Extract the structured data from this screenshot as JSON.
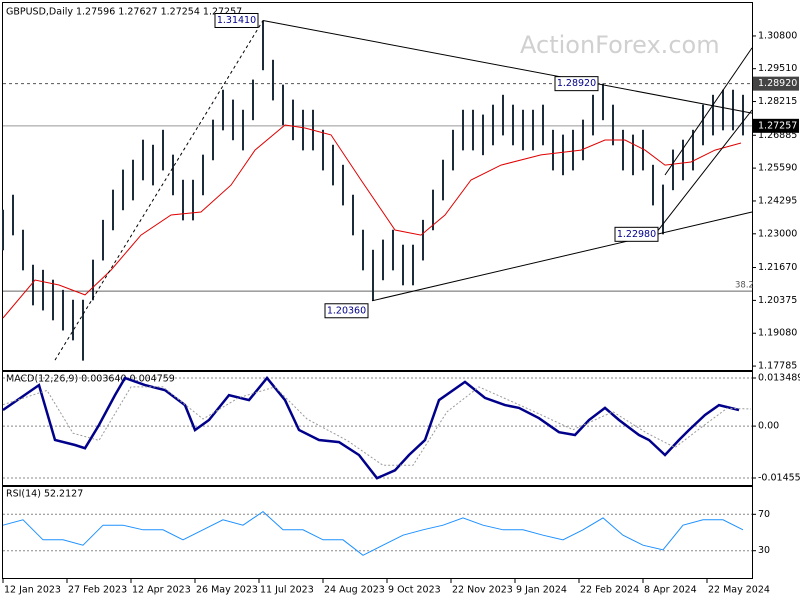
{
  "chart_data": [
    {
      "type": "ohlc",
      "title": "GBPUSD,Daily  1.27596 1.27627 1.27254 1.27257",
      "watermark": "ActionForex.com",
      "color": "#1c2b3a",
      "xlim": [
        0,
        374
      ],
      "ylim": [
        1.1767,
        1.3206
      ],
      "yticks": [
        {
          "value": 1.308,
          "label": "1.30800"
        },
        {
          "value": 1.2951,
          "label": "1.29510"
        },
        1.28215,
        1.26885,
        {
          "value": 1.2559,
          "label": "1.25590"
        },
        1.24295,
        {
          "value": 1.23,
          "label": "1.23000"
        },
        {
          "value": 1.2167,
          "label": "1.21670"
        },
        1.20375,
        {
          "value": 1.1908,
          "label": "1.19080"
        },
        1.17785
      ],
      "x": [
        0,
        5,
        10,
        15,
        20,
        25,
        30,
        35,
        40,
        45,
        50,
        55,
        60,
        65,
        70,
        75,
        80,
        85,
        90,
        95,
        100,
        105,
        110,
        115,
        120,
        125,
        130,
        135,
        140,
        145,
        150,
        155,
        160,
        165,
        170,
        175,
        180,
        185,
        190,
        195,
        200,
        205,
        210,
        215,
        220,
        225,
        230,
        235,
        240,
        245,
        250,
        255,
        260,
        265,
        270,
        275,
        280,
        285,
        290,
        295,
        300,
        305,
        310,
        315,
        320,
        325,
        330,
        335,
        340,
        345,
        350,
        355,
        360,
        365,
        370
      ],
      "high": [
        1.2395,
        1.2454,
        1.2316,
        1.2178,
        1.2158,
        1.2119,
        1.2079,
        1.204,
        1.204,
        1.2198,
        1.2355,
        1.2474,
        1.2553,
        1.2592,
        1.2671,
        1.2651,
        1.271,
        1.2612,
        1.2513,
        1.2513,
        1.2612,
        1.275,
        1.2868,
        1.2829,
        1.2789,
        1.2908,
        1.3141,
        1.2986,
        1.2888,
        1.2829,
        1.2789,
        1.2789,
        1.271,
        1.2651,
        1.2572,
        1.2454,
        1.2316,
        1.2237,
        1.2277,
        1.2316,
        1.2257,
        1.2257,
        1.2355,
        1.2474,
        1.2592,
        1.271,
        1.2789,
        1.2789,
        1.277,
        1.2809,
        1.2848,
        1.2809,
        1.2789,
        1.2789,
        1.2809,
        1.271,
        1.2691,
        1.271,
        1.275,
        1.2848,
        1.2892,
        1.2809,
        1.271,
        1.2691,
        1.271,
        1.2572,
        1.2494,
        1.2632,
        1.2671,
        1.271,
        1.2809,
        1.2848,
        1.2868,
        1.2868,
        1.2848
      ],
      "low": [
        1.2235,
        1.2294,
        1.2156,
        1.2018,
        1.1998,
        1.1959,
        1.1919,
        1.188,
        1.18,
        1.2038,
        1.2195,
        1.2314,
        1.2393,
        1.2432,
        1.2511,
        1.2491,
        1.255,
        1.2452,
        1.2353,
        1.2353,
        1.2452,
        1.259,
        1.2708,
        1.2669,
        1.2629,
        1.2748,
        1.2945,
        1.2826,
        1.2728,
        1.2669,
        1.2629,
        1.2629,
        1.255,
        1.2491,
        1.2412,
        1.2294,
        1.2156,
        1.2036,
        1.2117,
        1.2156,
        1.2097,
        1.2097,
        1.2195,
        1.2314,
        1.2432,
        1.255,
        1.2629,
        1.2629,
        1.261,
        1.2649,
        1.2688,
        1.2649,
        1.2629,
        1.2629,
        1.2649,
        1.255,
        1.2531,
        1.255,
        1.259,
        1.2688,
        1.2748,
        1.2649,
        1.255,
        1.2531,
        1.255,
        1.2412,
        1.2298,
        1.2472,
        1.2511,
        1.255,
        1.2649,
        1.2688,
        1.2708,
        1.2708,
        1.2688
      ],
      "ma": {
        "color": "#e00000",
        "x": [
          0,
          16,
          28,
          41,
          54,
          69,
          84,
          99,
          114,
          126,
          141,
          151,
          164,
          179,
          196,
          209,
          221,
          234,
          249,
          269,
          289,
          301,
          311,
          321,
          331,
          344,
          356,
          369
        ],
        "values": [
          1.1968,
          1.2118,
          1.2098,
          1.2059,
          1.2157,
          1.2295,
          1.2374,
          1.2386,
          1.2492,
          1.263,
          1.2729,
          1.2717,
          1.269,
          1.2512,
          1.2315,
          1.2295,
          1.2374,
          1.2512,
          1.2571,
          1.2611,
          1.263,
          1.267,
          1.267,
          1.263,
          1.2571,
          1.2583,
          1.263,
          1.2658
        ]
      },
      "trendlines": [
        {
          "x": [
            130,
            374.5
          ],
          "values": [
            1.3141,
            1.2776
          ],
          "dashed": false
        },
        {
          "x": [
            184.5,
            374.5
          ],
          "values": [
            1.2036,
            1.2386
          ],
          "dashed": false
        },
        {
          "x": [
            26,
            130
          ],
          "values": [
            1.1802,
            1.3141
          ],
          "dashed": true
        },
        {
          "x": [
            326,
            374.5
          ],
          "values": [
            1.2298,
            1.2788
          ],
          "dashed": false
        },
        {
          "x": [
            331,
            374.5
          ],
          "values": [
            1.2532,
            1.3033
          ],
          "dashed": false
        }
      ],
      "annotations": [
        {
          "x": 130,
          "value": {
            "value": 1.3141,
            "label": "1.31410"
          }
        },
        {
          "x": 300,
          "value": {
            "value": 1.2892,
            "label": "1.28920"
          }
        },
        {
          "x": 185,
          "value": {
            "value": 1.2036,
            "label": "1.20360"
          }
        },
        {
          "x": 330,
          "value": {
            "value": 1.2298,
            "label": "1.22980"
          }
        }
      ],
      "price_levels": [
        {
          "value": 1.2892,
          "label": "1.28920"
        },
        1.27257
      ],
      "level_dashed": [
        true,
        false
      ],
      "level_colors": [
        "#444444",
        "#000000"
      ],
      "fib_level": 1.2074,
      "fib_label": 38.2,
      "grid": false
    },
    {
      "type": "line",
      "title": "MACD(12,26,9) 0.003640 0.004759",
      "xlim": [
        0,
        374
      ],
      "ylim": [
        -0.01652,
        0.01517
      ],
      "yticks": [
        0.013489,
        {
          "value": 0,
          "label": "0.00"
        },
        -0.014554
      ],
      "grid": true,
      "series": [
        {
          "color": "#00008b",
          "width": 2.5,
          "dashed": false,
          "x": [
            0,
            18,
            26,
            36,
            41,
            48,
            56,
            61,
            71,
            81,
            91,
            96,
            103,
            113,
            123,
            132,
            141,
            148,
            158,
            168,
            178,
            187,
            196,
            203,
            211,
            218,
            231,
            241,
            251,
            258,
            268,
            278,
            286,
            293,
            301,
            308,
            318,
            323,
            331,
            338,
            343,
            351,
            358,
            368
          ],
          "values": [
            0.0045,
            0.0115,
            -0.0039,
            -0.0053,
            -0.0062,
            0.0003,
            0.0087,
            0.0135,
            0.0115,
            0.0101,
            0.0059,
            -0.0011,
            0.0017,
            0.0087,
            0.0073,
            0.0135,
            0.0073,
            -0.0011,
            -0.0039,
            -0.0045,
            -0.0081,
            -0.0146,
            -0.0124,
            -0.0081,
            -0.0039,
            0.0073,
            0.0124,
            0.0079,
            0.0059,
            0.0051,
            0.0022,
            -0.0017,
            -0.0025,
            0.0017,
            0.0051,
            0.0017,
            -0.0025,
            -0.0039,
            -0.0081,
            -0.0039,
            -0.0011,
            0.0031,
            0.0059,
            0.0045
          ]
        },
        {
          "color": "#9a9a9a",
          "width": 1,
          "dashed": true,
          "x": [
            0,
            22,
            35,
            48,
            64,
            80,
            100,
            118,
            136,
            152,
            172,
            190,
            205,
            222,
            238,
            262,
            285,
            305,
            322,
            336,
            350,
            362,
            374
          ],
          "values": [
            0.006,
            0.01,
            -0.002,
            -0.004,
            0.011,
            0.011,
            0.002,
            0.008,
            0.011,
            0.002,
            -0.004,
            -0.011,
            -0.011,
            0.004,
            0.011,
            0.005,
            -0.001,
            0.004,
            -0.002,
            -0.006,
            0,
            0.005,
            0.0048
          ]
        }
      ]
    },
    {
      "type": "line",
      "title": "RSI(14) 52.2127",
      "xlim": [
        0,
        374
      ],
      "ylim": [
        0,
        100
      ],
      "yticks": [
        70,
        30
      ],
      "grid": true,
      "xticks": [
        {
          "value": 0,
          "label": "12 Jan 2023"
        },
        {
          "value": 32,
          "label": "27 Feb 2023"
        },
        {
          "value": 64,
          "label": "12 Apr 2023"
        },
        {
          "value": 96,
          "label": "26 May 2023"
        },
        {
          "value": 128,
          "label": "11 Jul 2023"
        },
        {
          "value": 160,
          "label": "24 Aug 2023"
        },
        {
          "value": 192,
          "label": "9 Oct 2023"
        },
        {
          "value": 224,
          "label": "22 Nov 2023"
        },
        {
          "value": 256,
          "label": "9 Jan 2024"
        },
        {
          "value": 288,
          "label": "22 Feb 2024"
        },
        {
          "value": 320,
          "label": "8 Apr 2024"
        },
        {
          "value": 352,
          "label": "22 May 2024"
        }
      ],
      "series": [
        {
          "color": "#1e90ff",
          "width": 1,
          "dashed": false,
          "x": [
            0,
            10,
            20,
            30,
            40,
            50,
            60,
            70,
            80,
            90,
            100,
            110,
            120,
            130,
            140,
            150,
            160,
            170,
            180,
            190,
            200,
            210,
            220,
            230,
            240,
            250,
            260,
            270,
            280,
            290,
            300,
            310,
            320,
            330,
            340,
            350,
            360,
            370
          ],
          "values": [
            58,
            64,
            42,
            42,
            36,
            58,
            58,
            53,
            53,
            42,
            53,
            64,
            58,
            73,
            53,
            53,
            42,
            42,
            25,
            36,
            47,
            53,
            58,
            66,
            58,
            53,
            53,
            47,
            42,
            53,
            66,
            47,
            36,
            31,
            58,
            64,
            64,
            53
          ]
        }
      ]
    }
  ]
}
